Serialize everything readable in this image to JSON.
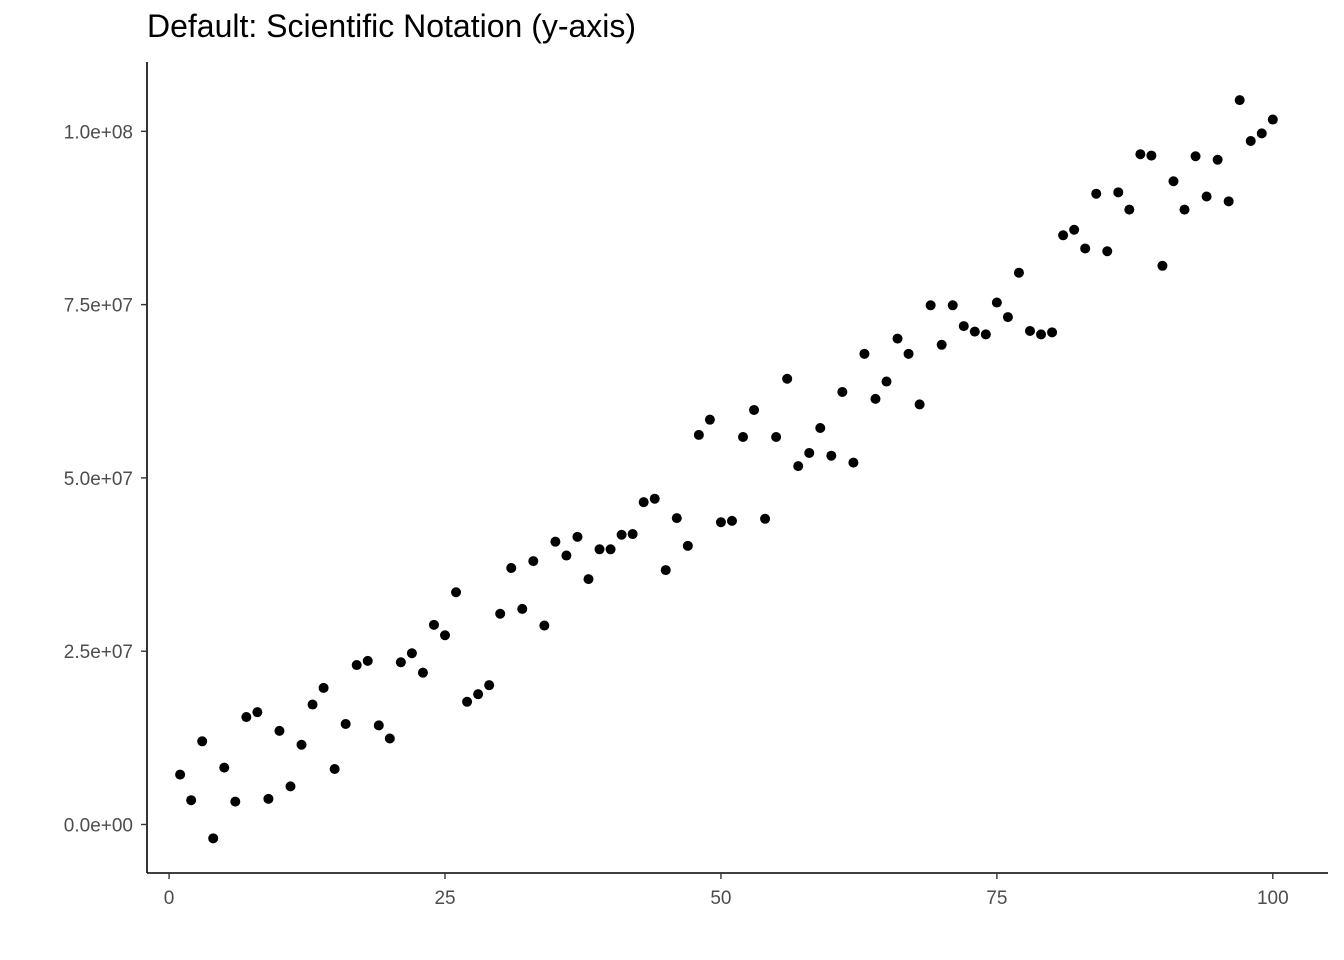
{
  "chart_data": {
    "type": "scatter",
    "title": "Default: Scientific Notation (y-axis)",
    "xlabel": "",
    "ylabel": "",
    "xlim": [
      -2,
      105
    ],
    "ylim": [
      -7000000,
      110000000
    ],
    "x_ticks": [
      0,
      25,
      50,
      75,
      100
    ],
    "x_tick_labels": [
      "0",
      "25",
      "50",
      "75",
      "100"
    ],
    "y_ticks": [
      0,
      25000000,
      50000000,
      75000000,
      100000000
    ],
    "y_tick_labels": [
      "0.0e+00",
      "2.5e+07",
      "5.0e+07",
      "7.5e+07",
      "1.0e+08"
    ],
    "grid": false,
    "point_color": "#000000",
    "x": [
      1,
      2,
      3,
      4,
      5,
      6,
      7,
      8,
      9,
      10,
      11,
      12,
      13,
      14,
      15,
      16,
      17,
      18,
      19,
      20,
      21,
      22,
      23,
      24,
      25,
      26,
      27,
      28,
      29,
      30,
      31,
      32,
      33,
      34,
      35,
      36,
      37,
      38,
      39,
      40,
      41,
      42,
      43,
      44,
      45,
      46,
      47,
      48,
      49,
      50,
      51,
      52,
      53,
      54,
      55,
      56,
      57,
      58,
      59,
      60,
      61,
      62,
      63,
      64,
      65,
      66,
      67,
      68,
      69,
      70,
      71,
      72,
      73,
      74,
      75,
      76,
      77,
      78,
      79,
      80,
      81,
      82,
      83,
      84,
      85,
      86,
      87,
      88,
      89,
      90,
      91,
      92,
      93,
      94,
      95,
      96,
      97,
      98,
      99,
      100
    ],
    "y": [
      7200000,
      3500000,
      12000000,
      -2000000,
      8200000,
      3300000,
      15500000,
      16200000,
      3700000,
      13500000,
      5500000,
      11500000,
      17300000,
      19700000,
      8000000,
      14500000,
      23000000,
      23600000,
      14300000,
      12400000,
      23400000,
      24700000,
      21900000,
      28800000,
      27300000,
      33500000,
      17700000,
      18800000,
      20100000,
      30400000,
      37000000,
      31100000,
      38000000,
      28700000,
      40800000,
      38800000,
      41500000,
      35400000,
      39700000,
      39700000,
      41800000,
      41900000,
      46500000,
      47000000,
      36700000,
      44200000,
      40200000,
      56200000,
      58400000,
      43600000,
      43800000,
      55900000,
      59800000,
      44100000,
      55900000,
      64300000,
      51700000,
      53600000,
      57200000,
      53200000,
      62400000,
      52200000,
      67900000,
      61400000,
      63900000,
      70100000,
      67900000,
      60600000,
      74900000,
      69200000,
      74900000,
      71900000,
      71100000,
      70700000,
      75300000,
      73200000,
      79600000,
      71200000,
      70700000,
      71000000,
      85000000,
      85800000,
      83100000,
      91000000,
      82700000,
      91200000,
      88700000,
      96700000,
      96500000,
      80600000,
      92800000,
      88700000,
      96400000,
      90600000,
      95900000,
      89900000,
      104500000,
      98600000,
      99700000,
      101700000
    ]
  }
}
